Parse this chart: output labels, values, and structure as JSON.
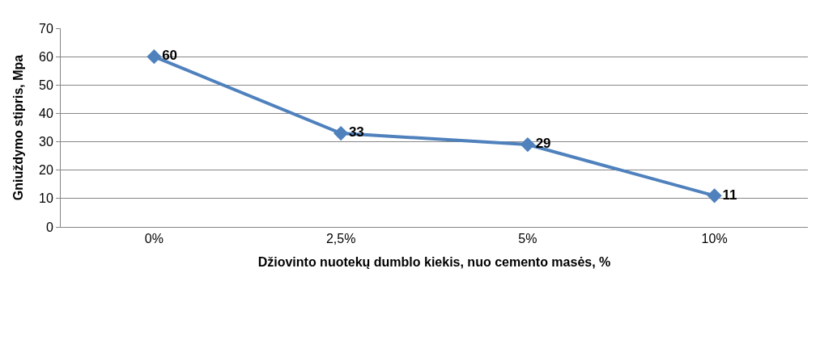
{
  "chart_data": {
    "type": "line",
    "xlabel": "Džiovinto nuotekų dumblo kiekis, nuo cemento masės, %",
    "ylabel": "Gniuždymo stipris, Mpa",
    "categories": [
      "0%",
      "2,5%",
      "5%",
      "10%"
    ],
    "series": [
      {
        "color": "#4f81bd",
        "values": [
          60,
          33,
          29,
          11
        ]
      }
    ],
    "ylim": [
      0,
      70
    ],
    "yticks": [
      0,
      10,
      20,
      30,
      40,
      50,
      60,
      70
    ],
    "grid": "y",
    "marker": "diamond",
    "line_style": "solid",
    "data_labels": true
  }
}
